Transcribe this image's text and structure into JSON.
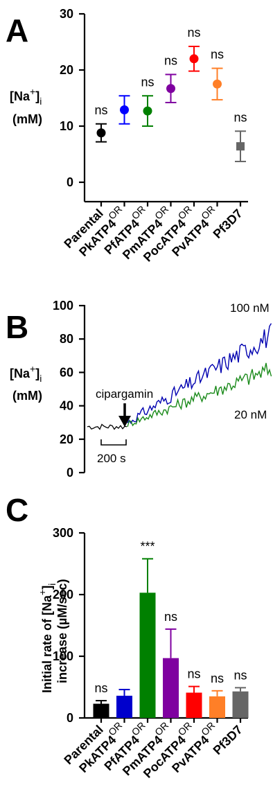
{
  "chart_data": [
    {
      "panel": "A",
      "type": "scatter",
      "ylabel_main": "[Na",
      "ylabel_sup": "+",
      "ylabel_close": "]",
      "ylabel_sub": "i",
      "ylabel_unit": "(mM)",
      "ylim": [
        0,
        30
      ],
      "yticks": [
        0,
        10,
        20,
        30
      ],
      "points": [
        {
          "main": "Parental",
          "sup": "",
          "mean": 8.8,
          "err": 1.6,
          "color": "#000000",
          "marker": "circle",
          "label": "ns"
        },
        {
          "main": "PkATP4",
          "sup": "OR",
          "mean": 12.9,
          "err": 2.5,
          "color": "#0000ff",
          "marker": "circle",
          "label": ""
        },
        {
          "main": "PfATP4",
          "sup": "OR",
          "mean": 12.7,
          "err": 2.7,
          "color": "#008000",
          "marker": "circle",
          "label": "ns"
        },
        {
          "main": "PmATP4",
          "sup": "OR",
          "mean": 16.7,
          "err": 2.5,
          "color": "#7f00a0",
          "marker": "circle",
          "label": "ns"
        },
        {
          "main": "PocATP4",
          "sup": "OR",
          "mean": 22.0,
          "err": 2.2,
          "color": "#ff0000",
          "marker": "circle",
          "label": "ns"
        },
        {
          "main": "PvATP4",
          "sup": "OR",
          "mean": 17.5,
          "err": 2.8,
          "color": "#ff7f27",
          "marker": "circle",
          "label": "ns"
        },
        {
          "main": "Pf3D7",
          "sup": "",
          "mean": 6.4,
          "err": 2.7,
          "color": "#666666",
          "marker": "square",
          "label": "ns"
        }
      ]
    },
    {
      "panel": "B",
      "type": "line",
      "ylabel_main": "[Na",
      "ylabel_sup": "+",
      "ylabel_close": "]",
      "ylabel_sub": "i",
      "ylabel_unit": "(mM)",
      "ylim": [
        0,
        100
      ],
      "yticks": [
        0,
        20,
        40,
        60,
        80,
        100
      ],
      "scale_bar_label": "200 s",
      "arrow_label": "cipargamin",
      "series": [
        {
          "name": "100 nM",
          "color": "#0000b0",
          "start": 30,
          "end": 83,
          "noise": 4.5
        },
        {
          "name": "20 nM",
          "color": "#1a8a1a",
          "start": 29,
          "end": 62,
          "noise": 3.5
        }
      ],
      "baseline": {
        "color": "#000000",
        "level": 27.5,
        "noise": 1.8
      }
    },
    {
      "panel": "C",
      "type": "bar",
      "ylabel_line1_main": "Initial rate of [Na",
      "ylabel_sup": "+",
      "ylabel_close": "]",
      "ylabel_sub": "i",
      "ylabel_line2": "increase (µM/sec)",
      "ylim": [
        0,
        300
      ],
      "yticks": [
        0,
        100,
        200,
        300
      ],
      "bars": [
        {
          "main": "Parental",
          "sup": "",
          "value": 23,
          "err": 5,
          "color": "#000000",
          "label": "ns"
        },
        {
          "main": "PkATP4",
          "sup": "OR",
          "value": 36,
          "err": 10,
          "color": "#0000cc",
          "label": ""
        },
        {
          "main": "PfATP4",
          "sup": "OR",
          "value": 203,
          "err": 55,
          "color": "#008000",
          "label": "***"
        },
        {
          "main": "PmATP4",
          "sup": "OR",
          "value": 97,
          "err": 47,
          "color": "#7f00a0",
          "label": "ns"
        },
        {
          "main": "PocATP4",
          "sup": "OR",
          "value": 41,
          "err": 10,
          "color": "#ff0000",
          "label": "ns"
        },
        {
          "main": "PvATP4",
          "sup": "OR",
          "value": 35,
          "err": 9,
          "color": "#ff7f27",
          "label": "ns"
        },
        {
          "main": "Pf3D7",
          "sup": "",
          "value": 43,
          "err": 6,
          "color": "#666666",
          "label": "ns"
        }
      ]
    }
  ],
  "panel_letters": [
    "A",
    "B",
    "C"
  ]
}
